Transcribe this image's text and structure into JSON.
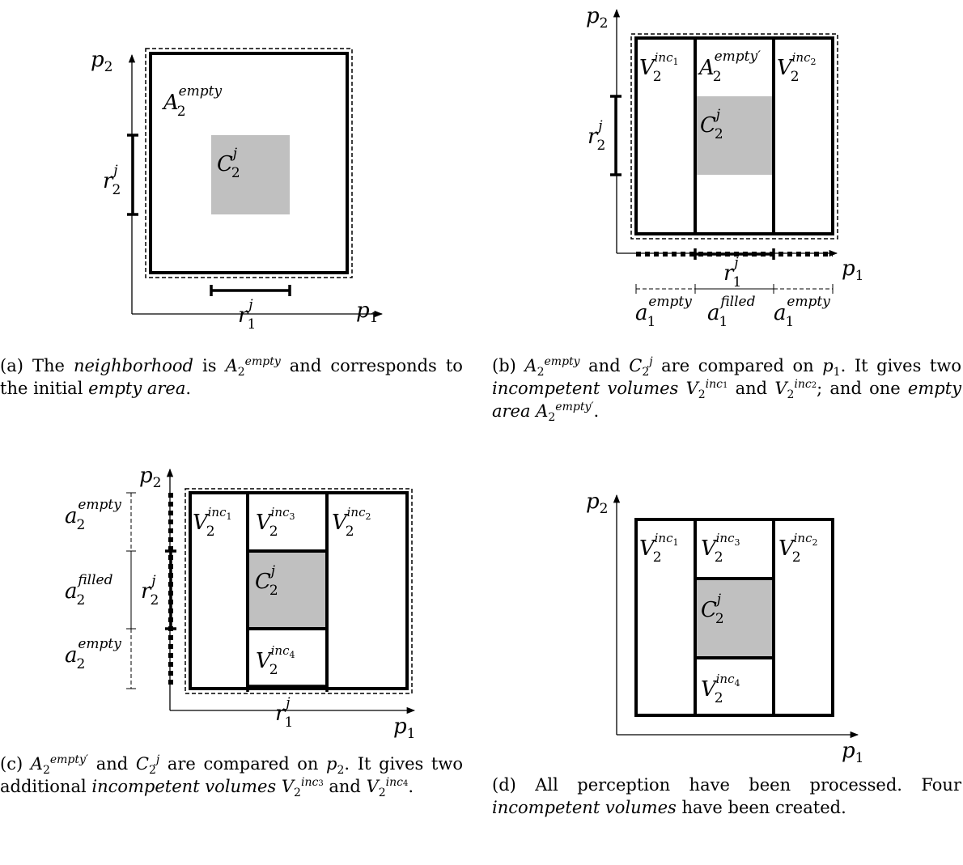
{
  "panels": {
    "a": {
      "axes": {
        "x": "p",
        "x_sub": "1",
        "y": "p",
        "y_sub": "2"
      },
      "labels": {
        "area": "A",
        "area_sub": "2",
        "area_sup": "empty",
        "cell": "C",
        "cell_sub": "2",
        "cell_sup": "j",
        "ry": "r",
        "ry_sub": "2",
        "ry_sup": "j",
        "rx": "r",
        "rx_sub": "1",
        "rx_sup": "j"
      },
      "caption": {
        "tag": "(a)",
        "t1": "The",
        "em1": "neighborhood",
        "t2": "is",
        "math_base": "A",
        "math_sub": "2",
        "math_sup": "empty",
        "t3": "and corresponds to the initial",
        "em2": "empty area",
        "t4": "."
      }
    },
    "b": {
      "axes": {
        "x": "p",
        "x_sub": "1",
        "y": "p",
        "y_sub": "2"
      },
      "labels": {
        "v1": "V",
        "v1_sub": "2",
        "v1_sup": "inc",
        "v1_sup_sub": "1",
        "a": "A",
        "a_sub": "2",
        "a_sup": "empty′",
        "v2": "V",
        "v2_sub": "2",
        "v2_sup": "inc",
        "v2_sup_sub": "2",
        "cell": "C",
        "cell_sub": "2",
        "cell_sup": "j",
        "ry": "r",
        "ry_sub": "2",
        "ry_sup": "j",
        "rx": "r",
        "rx_sub": "1",
        "rx_sup": "j",
        "a1": "a",
        "a1_sub": "1",
        "a1_sup": "empty",
        "a2": "a",
        "a2_sub": "1",
        "a2_sup": "filled",
        "a3": "a",
        "a3_sub": "1",
        "a3_sup": "empty"
      },
      "caption": {
        "tag": "(b)",
        "m1_base": "A",
        "m1_sub": "2",
        "m1_sup": "empty",
        "t1": "and",
        "m2_base": "C",
        "m2_sub": "2",
        "m2_sup": "j",
        "t2": "are compared on",
        "m3_base": "p",
        "m3_sub": "1",
        "t3": ". It gives two",
        "em1": "incompetent volumes",
        "m4_base": "V",
        "m4_sub": "2",
        "m4_sup": "inc",
        "m4_sup_sub": "1",
        "t4": "and",
        "m5_base": "V",
        "m5_sub": "2",
        "m5_sup": "inc",
        "m5_sup_sub": "2",
        "t5": "; and one",
        "em2": "empty area",
        "m6_base": "A",
        "m6_sub": "2",
        "m6_sup": "empty′",
        "t6": "."
      }
    },
    "c": {
      "axes": {
        "x": "p",
        "x_sub": "1",
        "y": "p",
        "y_sub": "2"
      },
      "labels": {
        "v1": "V",
        "v1_sub": "2",
        "v1_sup": "inc",
        "v1_sup_sub": "1",
        "v3": "V",
        "v3_sub": "2",
        "v3_sup": "inc",
        "v3_sup_sub": "3",
        "v2": "V",
        "v2_sub": "2",
        "v2_sup": "inc",
        "v2_sup_sub": "2",
        "v4": "V",
        "v4_sub": "2",
        "v4_sup": "inc",
        "v4_sup_sub": "4",
        "cell": "C",
        "cell_sub": "2",
        "cell_sup": "j",
        "ry": "r",
        "ry_sub": "2",
        "ry_sup": "j",
        "rx": "r",
        "rx_sub": "1",
        "rx_sup": "j",
        "a1": "a",
        "a1_sub": "2",
        "a1_sup": "empty",
        "a2": "a",
        "a2_sub": "2",
        "a2_sup": "filled",
        "a3": "a",
        "a3_sub": "2",
        "a3_sup": "empty"
      },
      "caption": {
        "tag": "(c)",
        "m1_base": "A",
        "m1_sub": "2",
        "m1_sup": "empty′",
        "t1": "and",
        "m2_base": "C",
        "m2_sub": "2",
        "m2_sup": "j",
        "t2": "are compared on",
        "m3_base": "p",
        "m3_sub": "2",
        "t3": ". It gives two additional",
        "em1": "incompetent volumes",
        "m4_base": "V",
        "m4_sub": "2",
        "m4_sup": "inc",
        "m4_sup_sub": "3",
        "t4": "and",
        "m5_base": "V",
        "m5_sub": "2",
        "m5_sup": "inc",
        "m5_sup_sub": "4",
        "t5": "."
      }
    },
    "d": {
      "axes": {
        "x": "p",
        "x_sub": "1",
        "y": "p",
        "y_sub": "2"
      },
      "labels": {
        "v1": "V",
        "v1_sub": "2",
        "v1_sup": "inc",
        "v1_sup_sub": "1",
        "v3": "V",
        "v3_sub": "2",
        "v3_sup": "inc",
        "v3_sup_sub": "3",
        "v2": "V",
        "v2_sub": "2",
        "v2_sup": "inc",
        "v2_sup_sub": "2",
        "v4": "V",
        "v4_sub": "2",
        "v4_sup": "inc",
        "v4_sup_sub": "4",
        "cell": "C",
        "cell_sub": "2",
        "cell_sup": "j"
      },
      "caption": {
        "tag": "(d)",
        "t1": "All perception have been processed. Four",
        "em1": "incompetent volumes",
        "t2": "have been created."
      }
    }
  }
}
